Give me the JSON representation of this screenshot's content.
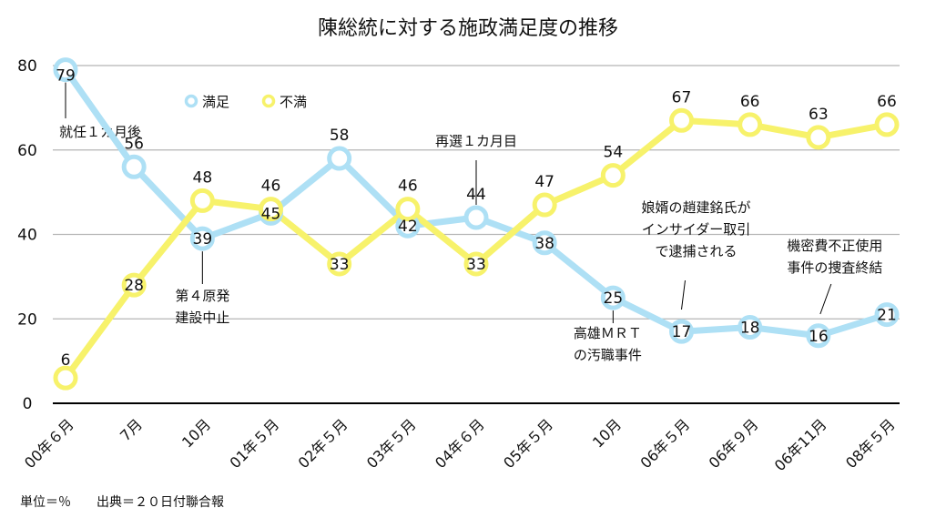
{
  "chart_data": {
    "type": "line",
    "title": "陳総統に対する施政満足度の推移",
    "categories": [
      "00年６月",
      "7月",
      "10月",
      "01年５月",
      "02年５月",
      "03年５月",
      "04年６月",
      "05年５月",
      "10月",
      "06年５月",
      "06年９月",
      "06年11月",
      "08年５月"
    ],
    "series": [
      {
        "name": "満足",
        "color": "#aee0f5",
        "values": [
          79,
          56,
          39,
          45,
          58,
          42,
          44,
          38,
          25,
          17,
          18,
          16,
          21
        ]
      },
      {
        "name": "不満",
        "color": "#f7f26b",
        "values": [
          6,
          28,
          48,
          46,
          33,
          46,
          33,
          47,
          54,
          67,
          66,
          63,
          66
        ]
      }
    ],
    "yticks": [
      0,
      20,
      40,
      60,
      80
    ],
    "ylim": [
      0,
      80
    ],
    "grid": true,
    "legend": "top-left",
    "annotations": [
      {
        "lines": [
          "就任１カ月後"
        ],
        "x": 0,
        "y": 79
      },
      {
        "lines": [
          "第４原発",
          "建設中止"
        ],
        "x": 2,
        "y": 39
      },
      {
        "lines": [
          "再選１カ月目"
        ],
        "x": 6,
        "y": 44
      },
      {
        "lines": [
          "高雄ＭＲＴ",
          "の汚職事件"
        ],
        "x": 8,
        "y": 25
      },
      {
        "lines": [
          "娘婿の趙建銘氏が",
          "インサイダー取引",
          "で逮捕される"
        ],
        "x": 9,
        "y": 17
      },
      {
        "lines": [
          "機密費不正使用",
          "事件の捜査終結"
        ],
        "x": 11,
        "y": 16
      }
    ],
    "footnote": "単位＝％　　出典＝２０日付聯合報"
  }
}
